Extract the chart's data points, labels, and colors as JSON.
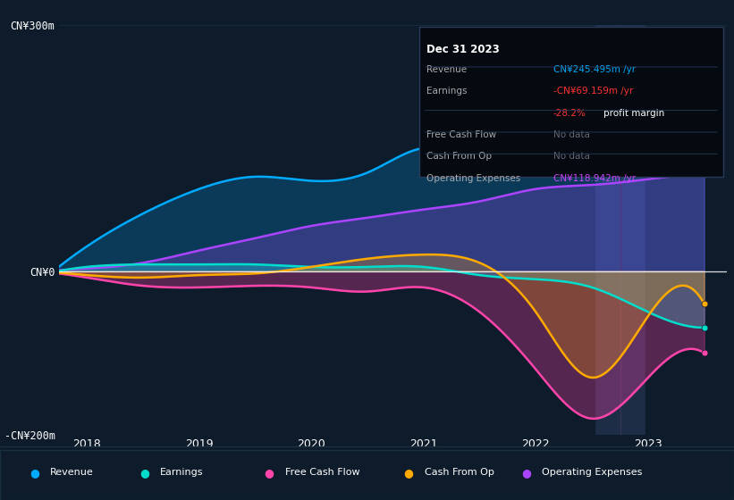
{
  "bg_color": "#0d1b2a",
  "plot_bg_color": "#0d1b2a",
  "grid_color": "#1a2f3f",
  "title_box": {
    "date": "Dec 31 2023",
    "rows": [
      {
        "label": "Revenue",
        "value": "CN¥245.495m /yr",
        "value_color": "#00aaff"
      },
      {
        "label": "Earnings",
        "value": "-CN¥69.159m /yr",
        "value_color": "#ff3333"
      },
      {
        "label": "",
        "value": "-28.2% profit margin",
        "value_color": "#ff3333"
      },
      {
        "label": "Free Cash Flow",
        "value": "No data",
        "value_color": "#666677"
      },
      {
        "label": "Cash From Op",
        "value": "No data",
        "value_color": "#666677"
      },
      {
        "label": "Operating Expenses",
        "value": "CN¥118.942m /yr",
        "value_color": "#cc44ff"
      }
    ]
  },
  "years": [
    2017.75,
    2018.0,
    2018.5,
    2019.0,
    2019.5,
    2020.0,
    2020.5,
    2021.0,
    2021.5,
    2022.0,
    2022.5,
    2023.0,
    2023.5
  ],
  "revenue": [
    5,
    30,
    70,
    100,
    115,
    110,
    120,
    150,
    165,
    265,
    270,
    250,
    245
  ],
  "earnings": [
    0,
    5,
    8,
    8,
    8,
    5,
    5,
    5,
    -5,
    -10,
    -20,
    -50,
    -69
  ],
  "free_cash_flow": [
    -3,
    -8,
    -18,
    -20,
    -18,
    -20,
    -25,
    -20,
    -50,
    -120,
    -180,
    -130,
    -100
  ],
  "cash_from_op": [
    -2,
    -5,
    -8,
    -5,
    -3,
    5,
    15,
    20,
    10,
    -50,
    -130,
    -55,
    -40
  ],
  "operating_expenses": [
    1,
    3,
    10,
    25,
    40,
    55,
    65,
    75,
    85,
    100,
    105,
    112,
    119
  ],
  "ylim": [
    -200,
    300
  ],
  "yticks": [
    -200,
    0,
    300
  ],
  "ytick_labels": [
    "-CN¥200m",
    "CN¥0",
    "CN¥300m"
  ],
  "colors": {
    "revenue": "#00aaff",
    "earnings": "#00ddcc",
    "free_cash_flow": "#ff44aa",
    "cash_from_op": "#ffaa00",
    "operating_expenses": "#aa44ff"
  },
  "legend_items": [
    "Revenue",
    "Earnings",
    "Free Cash Flow",
    "Cash From Op",
    "Operating Expenses"
  ],
  "legend_colors": [
    "#00aaff",
    "#00ddcc",
    "#ff44aa",
    "#ffaa00",
    "#aa44ff"
  ],
  "vline_x": 2022.75,
  "xlim": [
    2017.75,
    2023.7
  ],
  "xticks": [
    2018,
    2019,
    2020,
    2021,
    2022,
    2023
  ]
}
